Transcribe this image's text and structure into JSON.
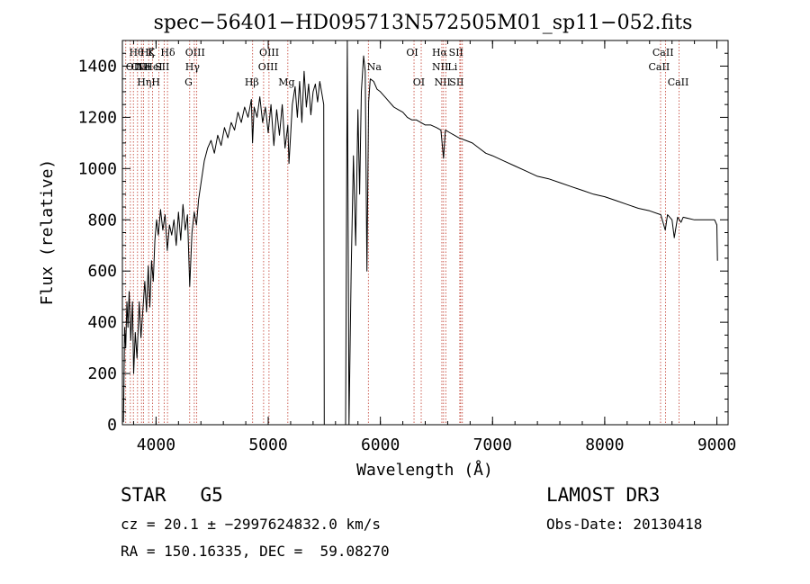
{
  "chart_data": {
    "type": "line",
    "title": "spec−56401−HD095713N572505M01_sp11−052.fits",
    "xlabel": "Wavelength (Å)",
    "ylabel": "Flux (relative)",
    "xlim": [
      3700,
      9100
    ],
    "ylim": [
      0,
      1500
    ],
    "xticks": [
      4000,
      5000,
      6000,
      7000,
      8000,
      9000
    ],
    "yticks": [
      0,
      200,
      400,
      600,
      800,
      1000,
      1200,
      1400
    ],
    "grid": false,
    "series": [
      {
        "color": "#000000",
        "points": [
          [
            3710,
            10
          ],
          [
            3720,
            380
          ],
          [
            3730,
            300
          ],
          [
            3740,
            480
          ],
          [
            3750,
            380
          ],
          [
            3760,
            520
          ],
          [
            3775,
            330
          ],
          [
            3790,
            480
          ],
          [
            3800,
            200
          ],
          [
            3815,
            360
          ],
          [
            3830,
            260
          ],
          [
            3850,
            480
          ],
          [
            3865,
            340
          ],
          [
            3880,
            430
          ],
          [
            3900,
            560
          ],
          [
            3915,
            440
          ],
          [
            3930,
            620
          ],
          [
            3945,
            460
          ],
          [
            3960,
            640
          ],
          [
            3975,
            560
          ],
          [
            3990,
            720
          ],
          [
            4005,
            800
          ],
          [
            4020,
            740
          ],
          [
            4040,
            840
          ],
          [
            4060,
            760
          ],
          [
            4080,
            820
          ],
          [
            4100,
            680
          ],
          [
            4120,
            780
          ],
          [
            4140,
            740
          ],
          [
            4160,
            800
          ],
          [
            4180,
            700
          ],
          [
            4200,
            830
          ],
          [
            4220,
            720
          ],
          [
            4240,
            860
          ],
          [
            4260,
            760
          ],
          [
            4280,
            820
          ],
          [
            4300,
            540
          ],
          [
            4320,
            750
          ],
          [
            4340,
            830
          ],
          [
            4360,
            780
          ],
          [
            4380,
            880
          ],
          [
            4400,
            940
          ],
          [
            4430,
            1030
          ],
          [
            4460,
            1080
          ],
          [
            4490,
            1110
          ],
          [
            4520,
            1060
          ],
          [
            4550,
            1130
          ],
          [
            4580,
            1090
          ],
          [
            4610,
            1160
          ],
          [
            4640,
            1120
          ],
          [
            4670,
            1180
          ],
          [
            4700,
            1150
          ],
          [
            4730,
            1220
          ],
          [
            4760,
            1180
          ],
          [
            4790,
            1240
          ],
          [
            4820,
            1200
          ],
          [
            4850,
            1270
          ],
          [
            4860,
            1100
          ],
          [
            4875,
            1240
          ],
          [
            4900,
            1200
          ],
          [
            4925,
            1280
          ],
          [
            4950,
            1180
          ],
          [
            4975,
            1240
          ],
          [
            5000,
            1140
          ],
          [
            5025,
            1250
          ],
          [
            5050,
            1090
          ],
          [
            5075,
            1230
          ],
          [
            5100,
            1130
          ],
          [
            5125,
            1250
          ],
          [
            5150,
            1080
          ],
          [
            5175,
            1170
          ],
          [
            5185,
            1020
          ],
          [
            5200,
            1130
          ],
          [
            5215,
            1250
          ],
          [
            5240,
            1320
          ],
          [
            5260,
            1200
          ],
          [
            5280,
            1340
          ],
          [
            5300,
            1180
          ],
          [
            5320,
            1380
          ],
          [
            5340,
            1240
          ],
          [
            5360,
            1330
          ],
          [
            5380,
            1210
          ],
          [
            5400,
            1300
          ],
          [
            5420,
            1330
          ],
          [
            5440,
            1260
          ],
          [
            5460,
            1340
          ],
          [
            5480,
            1290
          ],
          [
            5495,
            1250
          ],
          [
            5500,
            0
          ],
          [
            5690,
            0
          ],
          [
            5705,
            1500
          ],
          [
            5720,
            0
          ],
          [
            5740,
            600
          ],
          [
            5760,
            1050
          ],
          [
            5780,
            700
          ],
          [
            5800,
            1230
          ],
          [
            5815,
            900
          ],
          [
            5830,
            1300
          ],
          [
            5850,
            1440
          ],
          [
            5865,
            1380
          ],
          [
            5880,
            600
          ],
          [
            5895,
            1260
          ],
          [
            5910,
            1350
          ],
          [
            5940,
            1340
          ],
          [
            5970,
            1310
          ],
          [
            6000,
            1300
          ],
          [
            6040,
            1280
          ],
          [
            6080,
            1260
          ],
          [
            6120,
            1240
          ],
          [
            6160,
            1230
          ],
          [
            6200,
            1220
          ],
          [
            6240,
            1200
          ],
          [
            6280,
            1190
          ],
          [
            6320,
            1190
          ],
          [
            6360,
            1180
          ],
          [
            6400,
            1170
          ],
          [
            6450,
            1170
          ],
          [
            6500,
            1160
          ],
          [
            6540,
            1150
          ],
          [
            6563,
            1040
          ],
          [
            6580,
            1150
          ],
          [
            6620,
            1140
          ],
          [
            6660,
            1130
          ],
          [
            6700,
            1120
          ],
          [
            6760,
            1110
          ],
          [
            6820,
            1100
          ],
          [
            6880,
            1080
          ],
          [
            6940,
            1060
          ],
          [
            7000,
            1050
          ],
          [
            7100,
            1030
          ],
          [
            7200,
            1010
          ],
          [
            7300,
            990
          ],
          [
            7400,
            970
          ],
          [
            7500,
            960
          ],
          [
            7600,
            945
          ],
          [
            7700,
            930
          ],
          [
            7800,
            915
          ],
          [
            7900,
            900
          ],
          [
            8000,
            890
          ],
          [
            8100,
            875
          ],
          [
            8200,
            860
          ],
          [
            8300,
            845
          ],
          [
            8400,
            835
          ],
          [
            8500,
            820
          ],
          [
            8540,
            760
          ],
          [
            8560,
            820
          ],
          [
            8600,
            800
          ],
          [
            8620,
            730
          ],
          [
            8650,
            810
          ],
          [
            8680,
            790
          ],
          [
            8700,
            810
          ],
          [
            8800,
            800
          ],
          [
            8900,
            800
          ],
          [
            8980,
            800
          ],
          [
            9000,
            780
          ],
          [
            9005,
            640
          ]
        ]
      }
    ],
    "lines": [
      {
        "x": 3730,
        "label": "OII",
        "row": 1,
        "labelx": 3730
      },
      {
        "x": 3771,
        "label": "Hθ",
        "row": 0,
        "labelx": 3760
      },
      {
        "x": 3798,
        "label": "OIII",
        "row": 1,
        "labelx": 3775
      },
      {
        "x": 3835,
        "label": "Hη",
        "row": 2,
        "labelx": 3830
      },
      {
        "x": 3870,
        "label": "Ne",
        "row": 1,
        "labelx": 3822
      },
      {
        "x": 3889,
        "label": "Hζ",
        "row": 0,
        "labelx": 3860
      },
      {
        "x": 3934,
        "label": "K",
        "row": 0,
        "labelx": 3925
      },
      {
        "x": 3969,
        "label": "H",
        "row": 2,
        "labelx": 3960
      },
      {
        "x": 4026,
        "label": "HeI",
        "row": 1,
        "labelx": 3895
      },
      {
        "x": 4072,
        "label": "SII",
        "row": 1,
        "labelx": 3990
      },
      {
        "x": 4102,
        "label": "Hδ",
        "row": 0,
        "labelx": 4040
      },
      {
        "x": 4300,
        "label": "G",
        "row": 2,
        "labelx": 4255
      },
      {
        "x": 4341,
        "label": "Hγ",
        "row": 1,
        "labelx": 4260
      },
      {
        "x": 4363,
        "label": "OIII",
        "row": 0,
        "labelx": 4260
      },
      {
        "x": 4861,
        "label": "Hβ",
        "row": 2,
        "labelx": 4790
      },
      {
        "x": 4959,
        "label": "OIII",
        "row": 1,
        "labelx": 4910
      },
      {
        "x": 5007,
        "label": "OIII",
        "row": 0,
        "labelx": 4920
      },
      {
        "x": 5175,
        "label": "Mg",
        "row": 2,
        "labelx": 5090
      },
      {
        "x": 5893,
        "label": "Na",
        "row": 1,
        "labelx": 5880
      },
      {
        "x": 6300,
        "label": "OI",
        "row": 0,
        "labelx": 6230
      },
      {
        "x": 6364,
        "label": "OI",
        "row": 2,
        "labelx": 6290
      },
      {
        "x": 6548,
        "label": "NII",
        "row": 1,
        "labelx": 6460
      },
      {
        "x": 6563,
        "label": "Hα",
        "row": 0,
        "labelx": 6460
      },
      {
        "x": 6583,
        "label": "NII",
        "row": 2,
        "labelx": 6480
      },
      {
        "x": 6708,
        "label": "Li",
        "row": 1,
        "labelx": 6600
      },
      {
        "x": 6716,
        "label": "SII",
        "row": 0,
        "labelx": 6610
      },
      {
        "x": 6731,
        "label": "SII",
        "row": 2,
        "labelx": 6615
      },
      {
        "x": 8498,
        "label": "CaII",
        "row": 1,
        "labelx": 8390
      },
      {
        "x": 8542,
        "label": "CaII",
        "row": 0,
        "labelx": 8425
      },
      {
        "x": 8662,
        "label": "CaII",
        "row": 2,
        "labelx": 8560
      }
    ]
  },
  "footer": {
    "class_label": "STAR",
    "subclass": "G5",
    "survey": "LAMOST DR3",
    "cz_line": "cz = 20.1 ± −2997624832.0 km/s",
    "obs_date": "Obs-Date: 20130418",
    "radec_line": "RA = 150.16335, DEC =  59.08270"
  }
}
